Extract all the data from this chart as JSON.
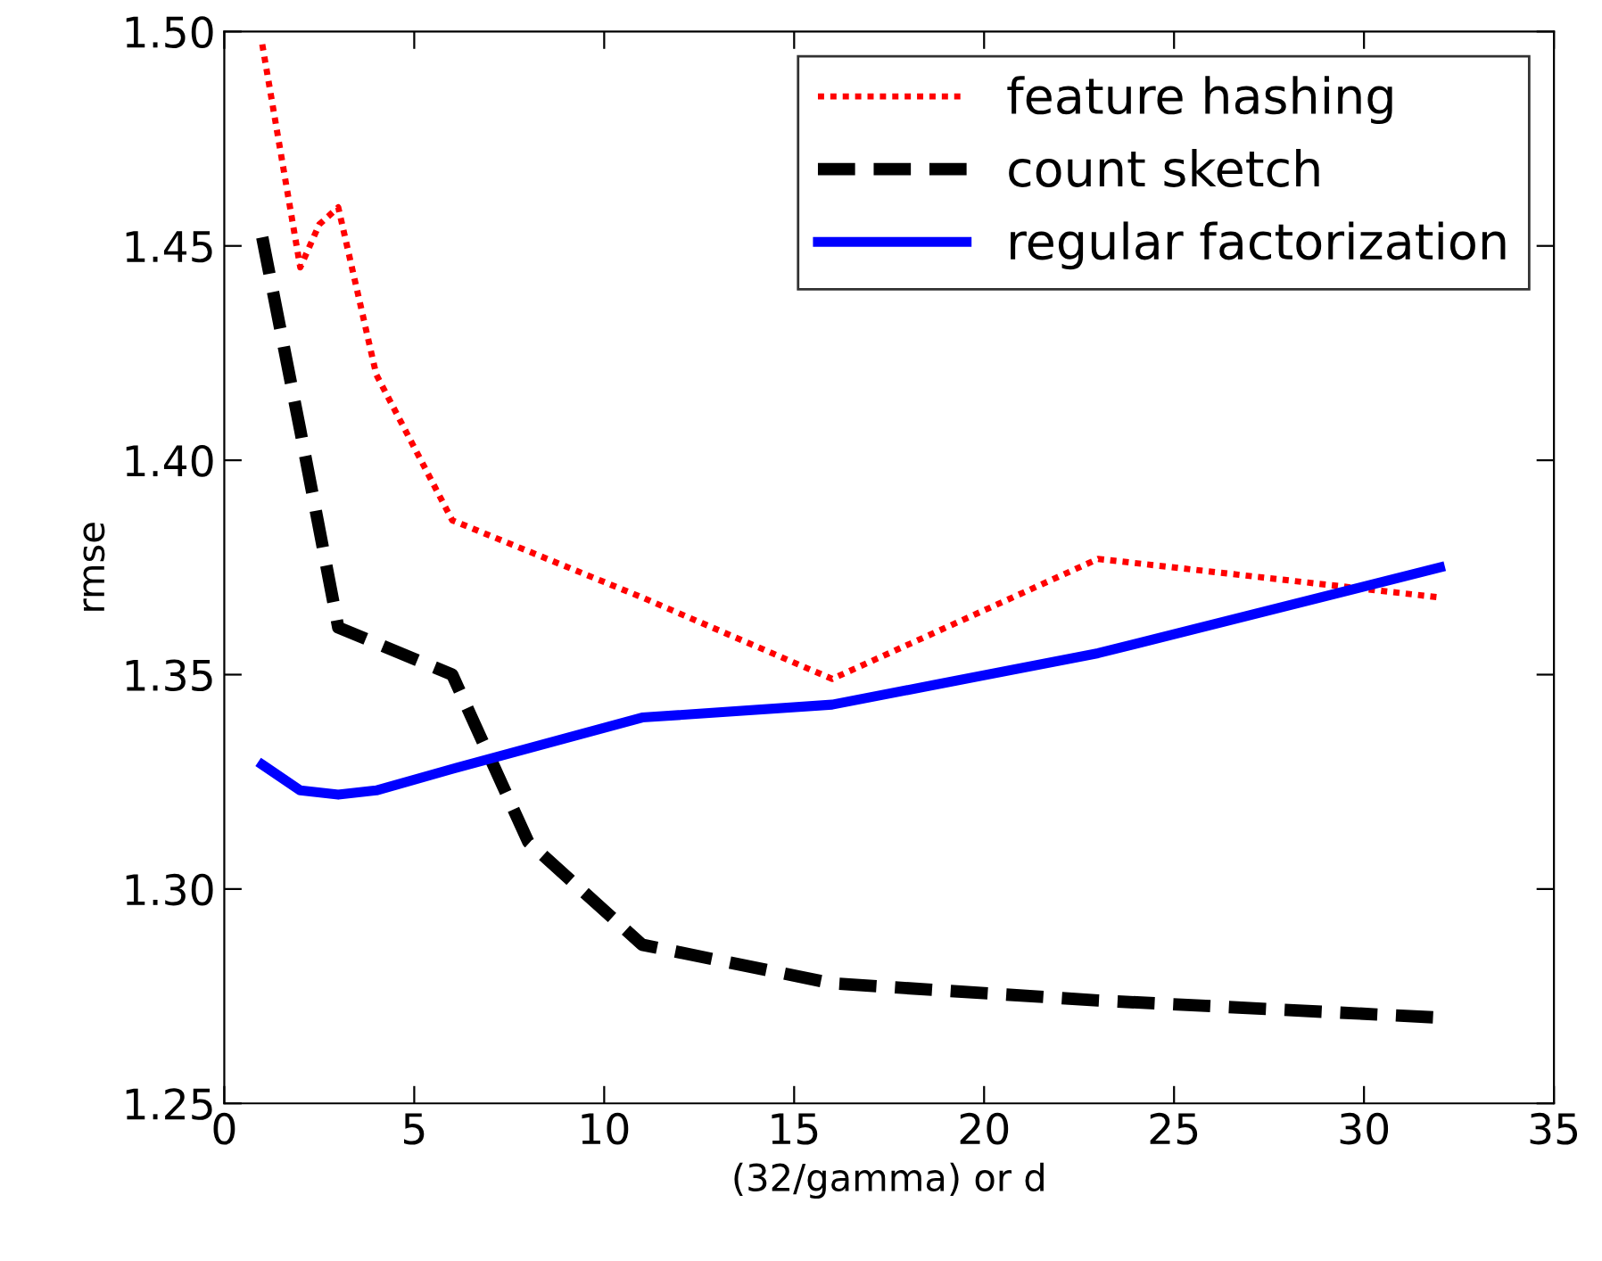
{
  "chart_data": {
    "type": "line",
    "xlabel": "(32/gamma) or d",
    "ylabel": "rmse",
    "xlim": [
      0,
      35
    ],
    "ylim": [
      1.25,
      1.5
    ],
    "xticks": [
      0,
      5,
      10,
      15,
      20,
      25,
      30,
      35
    ],
    "yticks": [
      {
        "value": 1.25,
        "label": "1.25"
      },
      {
        "value": 1.3,
        "label": "1.30"
      },
      {
        "value": 1.35,
        "label": "1.35"
      },
      {
        "value": 1.4,
        "label": "1.40"
      },
      {
        "value": 1.45,
        "label": "1.45"
      },
      {
        "value": 1.5,
        "label": "1.50"
      }
    ],
    "grid": false,
    "legend": "top right",
    "marker": "none",
    "series": [
      {
        "name": "feature hashing",
        "color": "#ff0000",
        "line_style": "dotted",
        "x": [
          1,
          2,
          2.5,
          3,
          4,
          6,
          11,
          16,
          23,
          32
        ],
        "values": [
          1.497,
          1.445,
          1.455,
          1.459,
          1.42,
          1.386,
          1.368,
          1.349,
          1.377,
          1.368
        ]
      },
      {
        "name": "count sketch",
        "color": "#000000",
        "line_style": "dashed",
        "x": [
          1,
          2,
          3,
          6,
          8,
          11,
          16,
          23,
          32
        ],
        "values": [
          1.452,
          1.407,
          1.361,
          1.35,
          1.311,
          1.287,
          1.278,
          1.274,
          1.27
        ]
      },
      {
        "name": "regular factorization",
        "color": "#0000ff",
        "line_style": "solid",
        "x": [
          1,
          2,
          3,
          4,
          6,
          11,
          16,
          23,
          32
        ],
        "values": [
          1.329,
          1.323,
          1.322,
          1.323,
          1.328,
          1.34,
          1.343,
          1.355,
          1.375
        ]
      }
    ]
  }
}
